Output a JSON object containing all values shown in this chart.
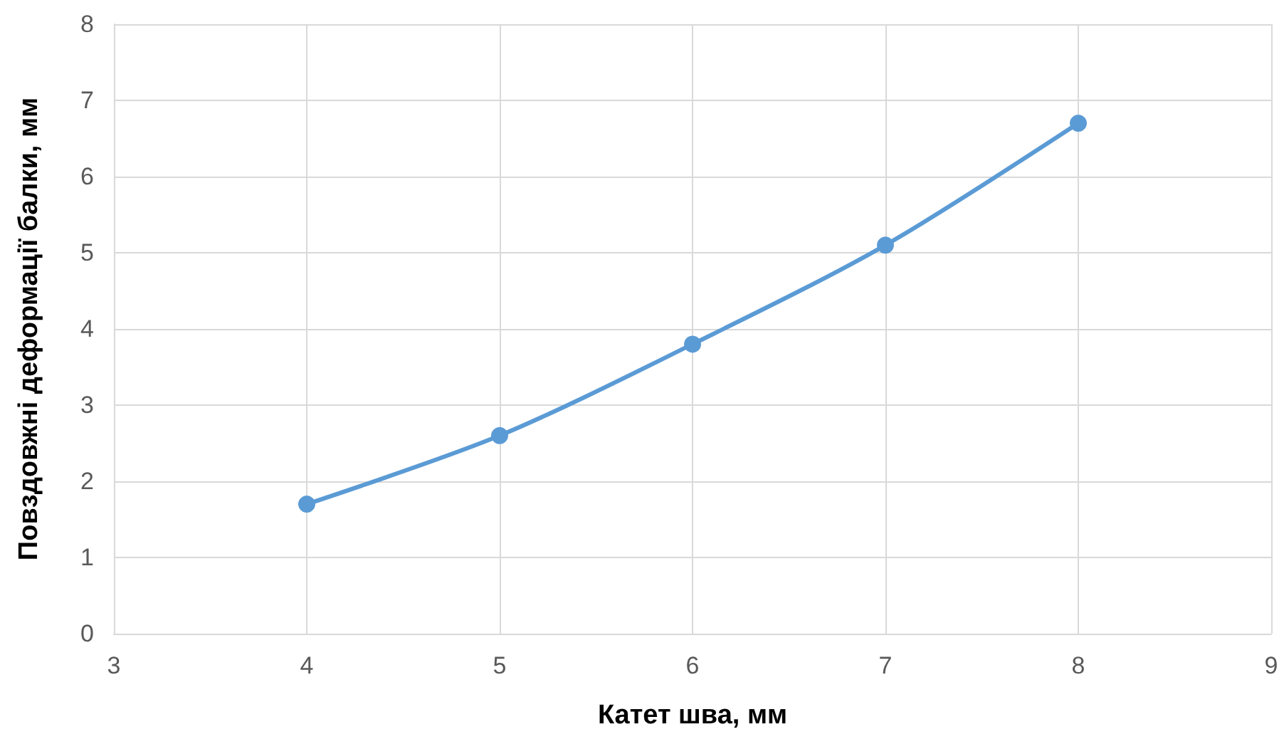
{
  "chart_data": {
    "type": "line",
    "xlabel": "Катет шва, мм",
    "ylabel": "Повздовжні деформації балки, мм",
    "x": [
      4,
      5,
      6,
      7,
      8
    ],
    "series": [
      {
        "color": "#5b9bd5",
        "values": [
          1.7,
          2.6,
          3.8,
          5.1,
          6.7
        ]
      }
    ],
    "xlim": [
      3,
      9
    ],
    "xticks": [
      3,
      4,
      5,
      6,
      7,
      8,
      9
    ],
    "ylim": [
      0,
      8
    ],
    "yticks": [
      0,
      1,
      2,
      3,
      4,
      5,
      6,
      7,
      8
    ],
    "grid": true,
    "marker": "circle",
    "line_style": "solid"
  }
}
